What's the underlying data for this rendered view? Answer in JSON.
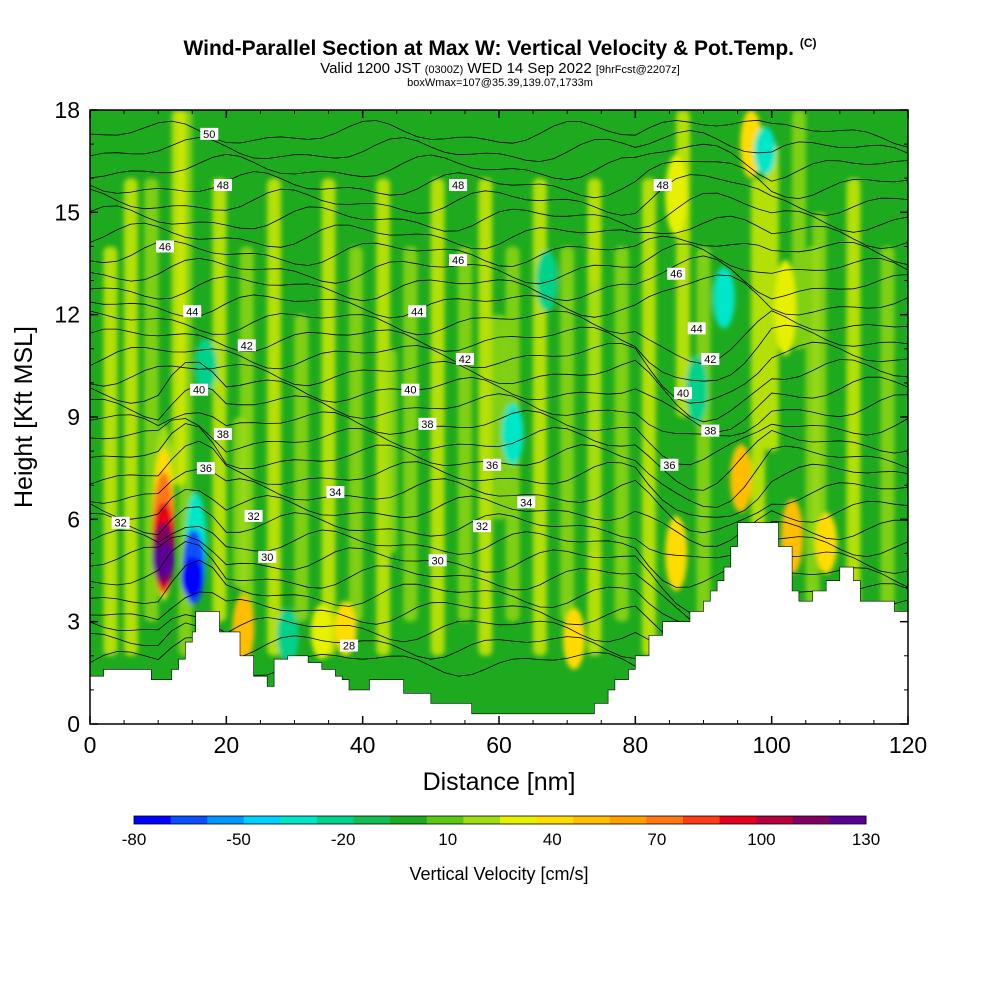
{
  "header": {
    "title": "Wind-Parallel Section at Max W: Vertical Velocity & Pot.Temp.",
    "copyright": "(C)",
    "valid_a": "Valid 1200 JST",
    "valid_utc": "(0300Z)",
    "valid_b": "WED 14 Sep 2022",
    "forecast": "[9hrFcst@2207z]",
    "boxinfo": "boxWmax=107@35.39,139.07,1733m"
  },
  "chart_data": {
    "type": "heatmap",
    "xlabel": "Distance [nm]",
    "ylabel": "Height [Kft MSL]",
    "xlim": [
      0,
      120
    ],
    "ylim": [
      0,
      18
    ],
    "xticks": [
      "0",
      "20",
      "40",
      "60",
      "80",
      "100",
      "120"
    ],
    "yticks": [
      "0",
      "3",
      "6",
      "9",
      "12",
      "15",
      "18"
    ],
    "colorbar": {
      "label": "Vertical Velocity [cm/s]",
      "tick_labels": [
        "-80",
        "-50",
        "-20",
        "10",
        "40",
        "70",
        "100",
        "130"
      ],
      "colors": [
        "#0000ff",
        "#0a50ff",
        "#0096ff",
        "#00d2ff",
        "#00e6c8",
        "#00d28c",
        "#14be50",
        "#1eaa1e",
        "#5ac814",
        "#a0dc14",
        "#e6f000",
        "#ffdc00",
        "#ffbe00",
        "#ffa000",
        "#ff7814",
        "#ff3c14",
        "#e6001e",
        "#b4003c",
        "#820064",
        "#5a0096"
      ]
    },
    "terrain_kft": [
      [
        0,
        1.4
      ],
      [
        2,
        1.6
      ],
      [
        4,
        1.6
      ],
      [
        8,
        1.6
      ],
      [
        9,
        1.3
      ],
      [
        11,
        1.3
      ],
      [
        12,
        1.6
      ],
      [
        13,
        1.9
      ],
      [
        14,
        2.4
      ],
      [
        15,
        2.7
      ],
      [
        15.5,
        3.3
      ],
      [
        18,
        3.3
      ],
      [
        19,
        2.7
      ],
      [
        22,
        2.0
      ],
      [
        24,
        1.4
      ],
      [
        26,
        1.1
      ],
      [
        27,
        1.9
      ],
      [
        29,
        2.0
      ],
      [
        32,
        1.8
      ],
      [
        34,
        1.6
      ],
      [
        36,
        1.4
      ],
      [
        37,
        1.3
      ],
      [
        38,
        1.0
      ],
      [
        40,
        1.0
      ],
      [
        41,
        1.3
      ],
      [
        44,
        1.3
      ],
      [
        46,
        0.9
      ],
      [
        48,
        0.9
      ],
      [
        50,
        0.6
      ],
      [
        54,
        0.6
      ],
      [
        56,
        0.3
      ],
      [
        60,
        0.3
      ],
      [
        62,
        0.3
      ],
      [
        70,
        0.3
      ],
      [
        74,
        0.6
      ],
      [
        76,
        1.0
      ],
      [
        77,
        1.3
      ],
      [
        79,
        1.6
      ],
      [
        80,
        2.0
      ],
      [
        82,
        2.6
      ],
      [
        84,
        3.0
      ],
      [
        86,
        3.0
      ],
      [
        88,
        3.3
      ],
      [
        90,
        3.6
      ],
      [
        91,
        3.9
      ],
      [
        92,
        4.2
      ],
      [
        93,
        4.6
      ],
      [
        94,
        5.2
      ],
      [
        95,
        5.9
      ],
      [
        100,
        5.9
      ],
      [
        101,
        5.2
      ],
      [
        103,
        3.9
      ],
      [
        104,
        3.6
      ],
      [
        106,
        3.9
      ],
      [
        108,
        4.2
      ],
      [
        110,
        4.6
      ],
      [
        112,
        4.2
      ],
      [
        113,
        3.6
      ],
      [
        116,
        3.6
      ],
      [
        118,
        3.3
      ],
      [
        120,
        3.3
      ]
    ],
    "potential_temperature_contour_labels": [
      "50",
      "48",
      "48",
      "48",
      "46",
      "46",
      "46",
      "44",
      "44",
      "44",
      "42",
      "42",
      "42",
      "40",
      "40",
      "40",
      "38",
      "38",
      "38",
      "36",
      "36",
      "36",
      "34",
      "34",
      "32",
      "32",
      "32",
      "30",
      "30",
      "28"
    ]
  }
}
